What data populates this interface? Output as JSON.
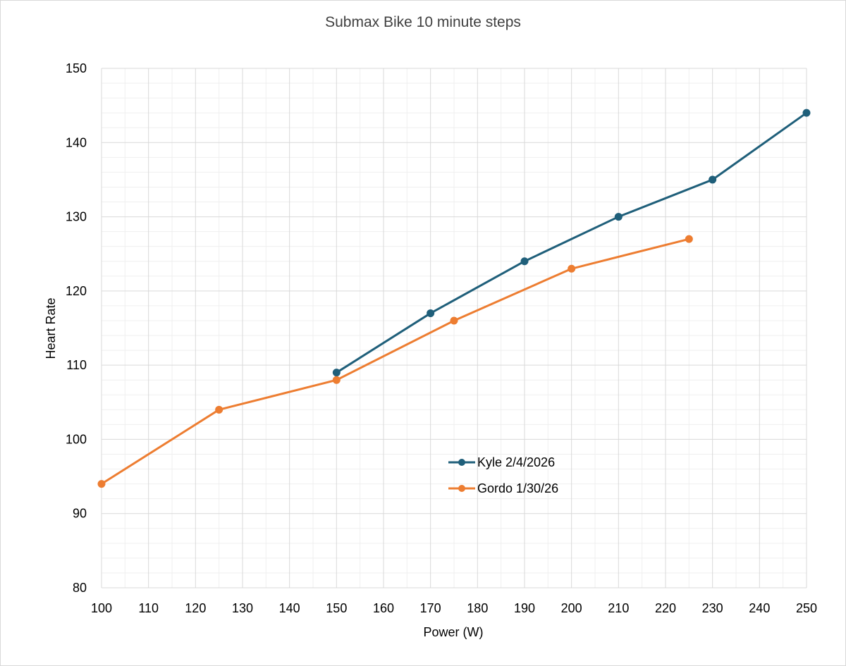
{
  "chart_data": {
    "type": "line",
    "title": "Submax Bike 10 minute steps",
    "xlabel": "Power (W)",
    "ylabel": "Heart Rate",
    "xlim": [
      100,
      250
    ],
    "ylim": [
      80,
      150
    ],
    "x_ticks": [
      100,
      110,
      120,
      130,
      140,
      150,
      160,
      170,
      180,
      190,
      200,
      210,
      220,
      230,
      240,
      250
    ],
    "y_ticks": [
      80,
      90,
      100,
      110,
      120,
      130,
      140,
      150
    ],
    "x_minor_step": 5,
    "y_minor_step": 2,
    "grid": true,
    "legend_position": "center-right",
    "series": [
      {
        "name": "Kyle 2/4/2026",
        "color": "#1f5f7a",
        "marker": "circle",
        "x": [
          150,
          170,
          190,
          210,
          230,
          250
        ],
        "y": [
          109,
          117,
          124,
          130,
          135,
          144
        ]
      },
      {
        "name": "Gordo 1/30/26",
        "color": "#ed7d31",
        "marker": "circle",
        "x": [
          100,
          125,
          150,
          175,
          200,
          225
        ],
        "y": [
          94,
          104,
          108,
          116,
          123,
          127
        ]
      }
    ]
  }
}
